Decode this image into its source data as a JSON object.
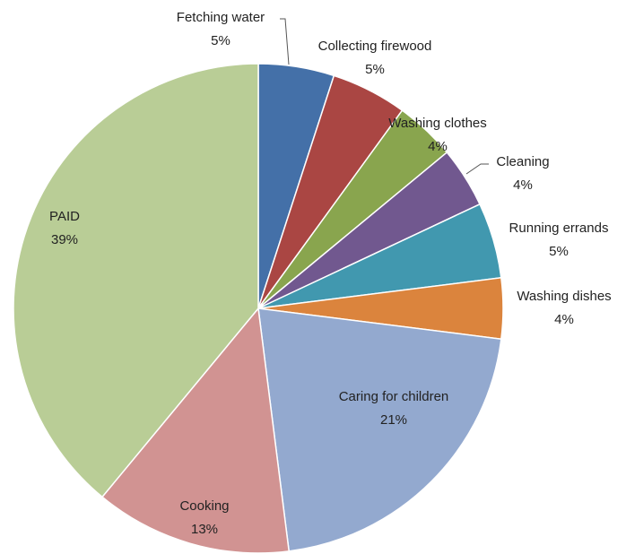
{
  "chart_data": {
    "type": "pie",
    "categories": [
      "Fetching water",
      "Collecting firewood",
      "Washing clothes",
      "Cleaning",
      "Running errands",
      "Washing dishes",
      "Caring for children",
      "Cooking",
      "PAID"
    ],
    "values": [
      5,
      5,
      4,
      4,
      5,
      4,
      21,
      13,
      39
    ],
    "value_labels": [
      "5%",
      "5%",
      "4%",
      "4%",
      "5%",
      "4%",
      "21%",
      "13%",
      "39%"
    ],
    "colors": [
      "#4470a8",
      "#aa4643",
      "#89a54e",
      "#71588f",
      "#4198af",
      "#db843d",
      "#93a9cf",
      "#d19392",
      "#b9cd96"
    ]
  }
}
